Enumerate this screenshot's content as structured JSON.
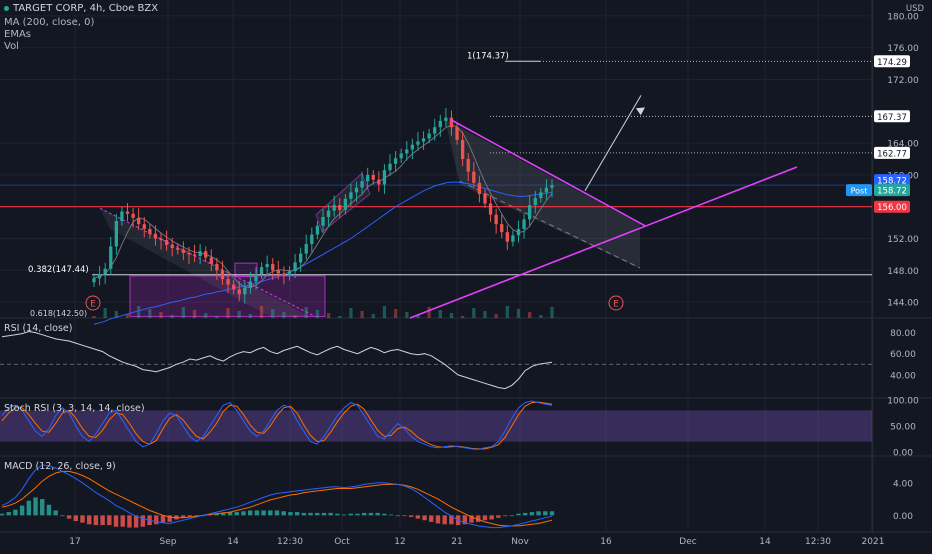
{
  "header": {
    "symbol": "TARGET CORP, 4h, Cboe BZX",
    "ma": "MA (200, close, 0)",
    "emas": "EMAs",
    "vol": "Vol"
  },
  "currency": "USD",
  "panels": {
    "rsi": "RSI (14, close)",
    "stoch": "Stoch RSI (3, 3, 14, 14, close)",
    "macd": "MACD (12, 26, close, 9)"
  },
  "colors": {
    "background": "#131722",
    "up": "#26a69a",
    "down": "#ef5350",
    "magenta": "#e040fb",
    "red_line": "#f23645",
    "ma_blue": "#2962ff",
    "post_badge": "#2196f3"
  },
  "chart_data": {
    "type": "candlestick",
    "xaxis_ticks": [
      "17",
      "Sep",
      "14",
      "12:30",
      "Oct",
      "12",
      "21",
      "Nov",
      "16",
      "Dec",
      "14",
      "12:30",
      "2021"
    ],
    "price_axis": {
      "ylim": [
        142,
        182
      ],
      "ticks": [
        "180.00",
        "176.00",
        "172.00",
        "164.00",
        "160.00",
        "152.00",
        "148.00",
        "144.00"
      ]
    },
    "price_badges": [
      {
        "label": "174.29",
        "value": 174.29
      },
      {
        "label": "167.37",
        "value": 167.37
      },
      {
        "label": "162.77",
        "value": 162.77
      },
      {
        "label": "158.72",
        "value": 158.72
      },
      {
        "label": "158.72",
        "value": 158.72,
        "prefix": "Post"
      },
      {
        "label": "156.00",
        "value": 156.0
      }
    ],
    "annotations": [
      "1(174.37)",
      "0.382(147.44)",
      "0.618(142.50)"
    ],
    "earnings_markers": [
      "E",
      "E"
    ],
    "close_series": [
      147.0,
      147.5,
      148.2,
      151.0,
      154.2,
      155.4,
      155.1,
      154.6,
      153.8,
      153.2,
      152.6,
      152.0,
      151.8,
      151.2,
      150.8,
      150.6,
      150.2,
      150.0,
      149.8,
      150.4,
      149.6,
      148.8,
      148.0,
      146.9,
      146.2,
      145.6,
      145.0,
      145.8,
      146.6,
      147.5,
      148.4,
      148.8,
      148.0,
      147.6,
      147.3,
      147.9,
      149.0,
      150.1,
      151.3,
      152.5,
      153.6,
      154.7,
      155.5,
      156.2,
      155.6,
      157.0,
      157.8,
      158.4,
      159.2,
      160.0,
      159.4,
      158.8,
      160.6,
      161.4,
      162.1,
      162.7,
      163.2,
      163.8,
      164.2,
      164.6,
      165.2,
      166.0,
      166.8,
      167.2,
      166.0,
      164.4,
      162.0,
      160.4,
      159.0,
      157.6,
      156.4,
      155.0,
      153.8,
      152.8,
      151.6,
      152.4,
      153.2,
      154.4,
      156.2,
      157.1,
      157.8,
      158.4,
      158.7
    ],
    "ma200_series": [
      141.2,
      141.4,
      141.6,
      141.9,
      142.1,
      142.3,
      142.5,
      142.7,
      142.9,
      143.1,
      143.3,
      143.4,
      143.6,
      143.8,
      144.0,
      144.1,
      144.3,
      144.5,
      144.6,
      144.8,
      145.0,
      145.1,
      145.3,
      145.4,
      145.6,
      145.7,
      145.9,
      146.0,
      146.2,
      146.4,
      146.6,
      146.8,
      147.0,
      147.2,
      147.5,
      147.8,
      148.1,
      148.4,
      148.8,
      149.2,
      149.6,
      150.0,
      150.4,
      150.8,
      151.2,
      151.6,
      152.0,
      152.5,
      153.0,
      153.5,
      154.0,
      154.5,
      155.0,
      155.5,
      156.0,
      156.4,
      156.8,
      157.2,
      157.6,
      158.0,
      158.3,
      158.6,
      158.8,
      159.0,
      159.1,
      159.1,
      159.0,
      158.9,
      158.7,
      158.5,
      158.3,
      158.1,
      157.9,
      157.7,
      157.5,
      157.4,
      157.3,
      157.3,
      157.4,
      157.5,
      157.6,
      157.7,
      157.8
    ],
    "rsi": {
      "ylim": [
        20,
        90
      ],
      "ticks": [
        "80.00",
        "60.00",
        "40.00"
      ],
      "values": [
        76,
        77,
        78,
        79,
        81,
        80,
        78,
        76,
        74,
        73,
        72,
        70,
        68,
        66,
        64,
        62,
        58,
        55,
        52,
        50,
        48,
        45,
        44,
        43,
        45,
        47,
        50,
        52,
        55,
        54,
        56,
        58,
        55,
        53,
        57,
        60,
        62,
        61,
        64,
        66,
        62,
        60,
        63,
        65,
        67,
        64,
        61,
        59,
        62,
        65,
        67,
        64,
        62,
        60,
        63,
        66,
        64,
        61,
        63,
        64,
        62,
        60,
        59,
        60,
        58,
        54,
        50,
        45,
        40,
        38,
        36,
        34,
        32,
        30,
        28,
        27,
        30,
        36,
        44,
        48,
        50,
        51,
        52
      ]
    },
    "stoch_rsi": {
      "ylim": [
        0,
        100
      ],
      "ticks": [
        "100.00",
        "50.00",
        "0.00"
      ],
      "k": [
        70,
        85,
        90,
        80,
        60,
        40,
        30,
        45,
        70,
        85,
        75,
        50,
        30,
        20,
        35,
        55,
        75,
        80,
        60,
        40,
        20,
        10,
        15,
        35,
        60,
        75,
        70,
        50,
        30,
        20,
        30,
        50,
        70,
        90,
        95,
        80,
        60,
        40,
        30,
        40,
        60,
        80,
        90,
        85,
        60,
        40,
        20,
        15,
        30,
        50,
        70,
        85,
        95,
        90,
        70,
        50,
        30,
        25,
        40,
        55,
        45,
        30,
        20,
        15,
        10,
        8,
        10,
        12,
        10,
        8,
        6,
        5,
        8,
        10,
        20,
        40,
        65,
        85,
        95,
        98,
        95,
        92,
        90
      ],
      "d": [
        60,
        75,
        85,
        85,
        72,
        55,
        40,
        38,
        55,
        75,
        80,
        65,
        45,
        30,
        28,
        42,
        62,
        75,
        72,
        55,
        35,
        20,
        15,
        22,
        45,
        65,
        72,
        62,
        45,
        30,
        25,
        38,
        55,
        78,
        90,
        88,
        72,
        52,
        38,
        36,
        50,
        70,
        85,
        88,
        75,
        52,
        32,
        20,
        22,
        38,
        58,
        75,
        88,
        92,
        82,
        62,
        42,
        30,
        32,
        45,
        48,
        40,
        28,
        20,
        14,
        10,
        9,
        10,
        11,
        9,
        7,
        6,
        6,
        9,
        14,
        28,
        50,
        72,
        88,
        95,
        96,
        94,
        92
      ]
    },
    "macd": {
      "ylim": [
        -1.8,
        6.8
      ],
      "ticks": [
        "4.00",
        "0.00"
      ],
      "macd": [
        1.2,
        1.6,
        2.2,
        3.2,
        4.5,
        5.6,
        6.2,
        6.1,
        5.8,
        5.4,
        5.0,
        4.5,
        4.0,
        3.4,
        2.8,
        2.3,
        1.8,
        1.2,
        0.8,
        0.3,
        -0.1,
        -0.4,
        -0.6,
        -0.8,
        -0.9,
        -1.0,
        -0.8,
        -0.6,
        -0.4,
        -0.2,
        0.0,
        0.2,
        0.4,
        0.6,
        0.8,
        1.0,
        1.3,
        1.6,
        1.9,
        2.2,
        2.5,
        2.7,
        2.8,
        2.9,
        3.0,
        3.1,
        3.2,
        3.3,
        3.4,
        3.5,
        3.5,
        3.4,
        3.5,
        3.6,
        3.8,
        3.9,
        4.0,
        4.0,
        3.9,
        3.8,
        3.6,
        3.3,
        2.8,
        2.2,
        1.6,
        1.0,
        0.4,
        -0.1,
        -0.6,
        -0.9,
        -1.1,
        -1.3,
        -1.4,
        -1.5,
        -1.5,
        -1.4,
        -1.3,
        -1.1,
        -0.9,
        -0.7,
        -0.5,
        -0.3,
        -0.1
      ],
      "signal": [
        1.0,
        1.2,
        1.5,
        2.0,
        2.7,
        3.4,
        4.2,
        4.8,
        5.2,
        5.4,
        5.4,
        5.2,
        4.9,
        4.5,
        4.0,
        3.5,
        3.0,
        2.6,
        2.2,
        1.8,
        1.4,
        1.0,
        0.6,
        0.3,
        0.0,
        -0.2,
        -0.3,
        -0.3,
        -0.2,
        -0.1,
        0.0,
        0.1,
        0.2,
        0.3,
        0.4,
        0.6,
        0.8,
        1.0,
        1.3,
        1.6,
        1.9,
        2.1,
        2.3,
        2.5,
        2.6,
        2.8,
        2.9,
        3.0,
        3.1,
        3.2,
        3.3,
        3.3,
        3.3,
        3.4,
        3.5,
        3.6,
        3.7,
        3.8,
        3.8,
        3.8,
        3.7,
        3.5,
        3.2,
        2.8,
        2.4,
        2.0,
        1.5,
        1.0,
        0.6,
        0.2,
        -0.2,
        -0.5,
        -0.8,
        -1.0,
        -1.2,
        -1.3,
        -1.3,
        -1.3,
        -1.2,
        -1.1,
        -1.0,
        -0.8,
        -0.6
      ]
    }
  }
}
